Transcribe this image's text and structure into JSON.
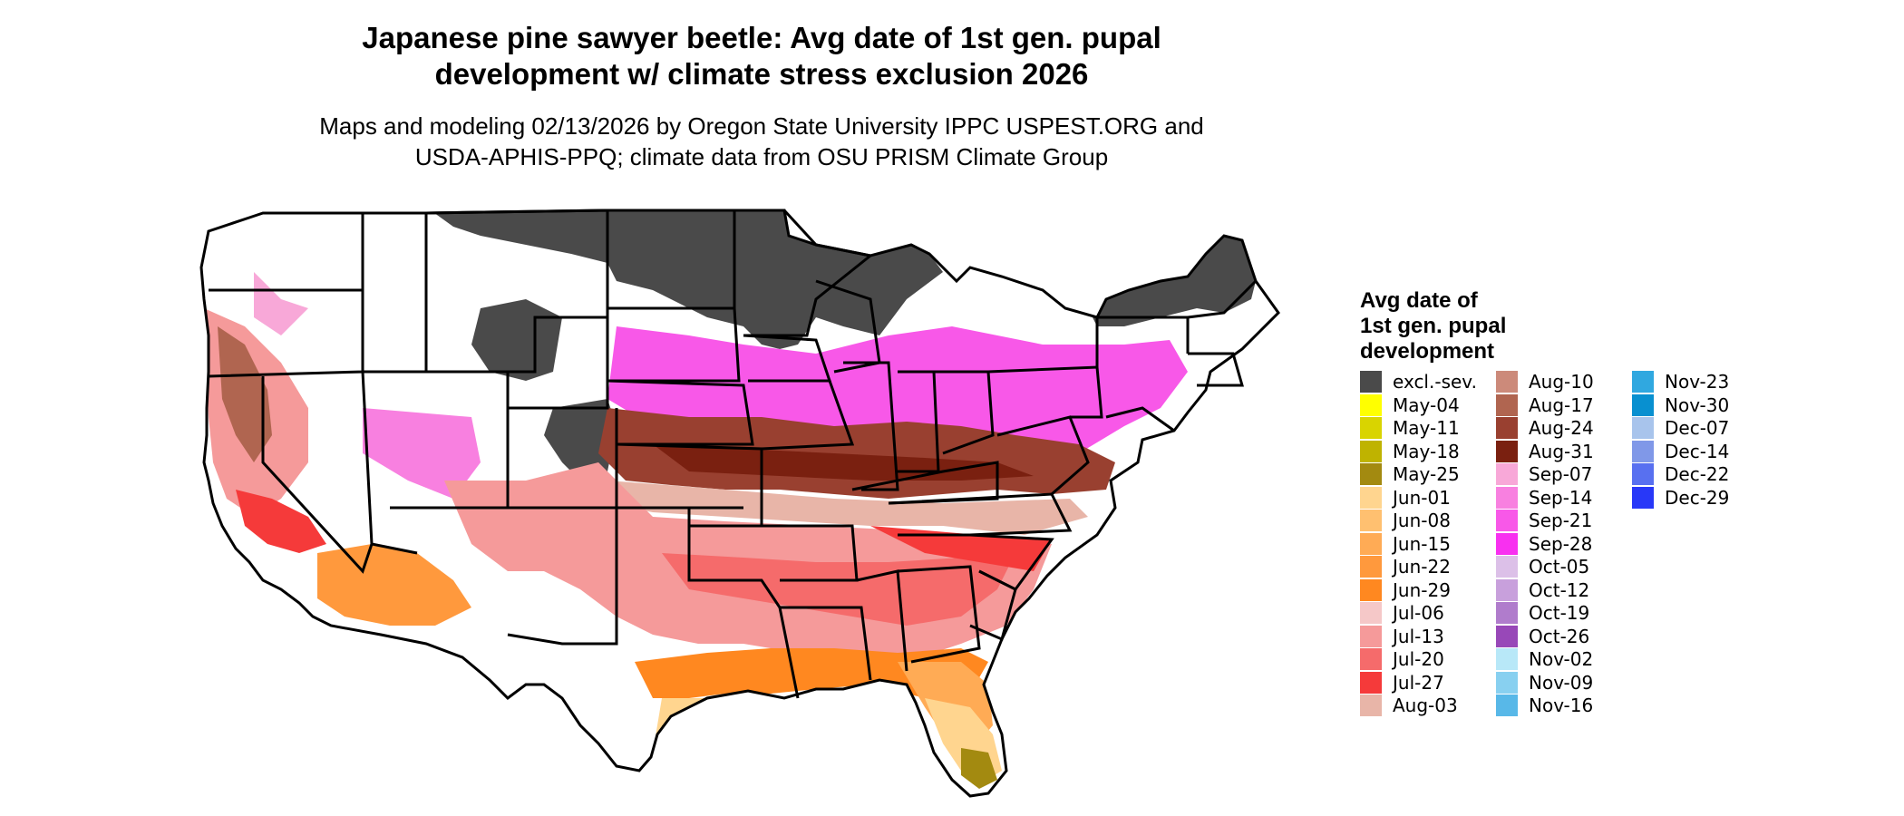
{
  "title_line1": "Japanese pine sawyer beetle: Avg date of 1st gen. pupal",
  "title_line2": "development w/ climate stress exclusion 2026",
  "subtitle_line1": "Maps and modeling 02/13/2026 by Oregon State University IPPC USPEST.ORG and",
  "subtitle_line2": "USDA-APHIS-PPQ; climate data from OSU PRISM Climate Group",
  "legend": {
    "title_line1": "Avg date of",
    "title_line2": "1st gen. pupal",
    "title_line3": "development",
    "items": [
      {
        "label": "excl.-sev.",
        "color": "#4a4a4a"
      },
      {
        "label": "May-04",
        "color": "#ffff00"
      },
      {
        "label": "May-11",
        "color": "#d9d400"
      },
      {
        "label": "May-18",
        "color": "#bfb300"
      },
      {
        "label": "May-25",
        "color": "#a38a10"
      },
      {
        "label": "Jun-01",
        "color": "#ffd58f"
      },
      {
        "label": "Jun-08",
        "color": "#ffc070"
      },
      {
        "label": "Jun-15",
        "color": "#ffab55"
      },
      {
        "label": "Jun-22",
        "color": "#ff993d"
      },
      {
        "label": "Jun-29",
        "color": "#ff8820"
      },
      {
        "label": "Jul-06",
        "color": "#f5c8c8"
      },
      {
        "label": "Jul-13",
        "color": "#f59a9a"
      },
      {
        "label": "Jul-20",
        "color": "#f56b6b"
      },
      {
        "label": "Jul-27",
        "color": "#f53a3a"
      },
      {
        "label": "Aug-03",
        "color": "#e8b5a8"
      },
      {
        "label": "Aug-10",
        "color": "#cc8a7a"
      },
      {
        "label": "Aug-17",
        "color": "#b06550"
      },
      {
        "label": "Aug-24",
        "color": "#994030"
      },
      {
        "label": "Aug-31",
        "color": "#7a2010"
      },
      {
        "label": "Sep-07",
        "color": "#f8a8d8"
      },
      {
        "label": "Sep-14",
        "color": "#f880e0"
      },
      {
        "label": "Sep-21",
        "color": "#f858e8"
      },
      {
        "label": "Sep-28",
        "color": "#f830f0"
      },
      {
        "label": "Oct-05",
        "color": "#dcc0e8"
      },
      {
        "label": "Oct-12",
        "color": "#c8a0dc"
      },
      {
        "label": "Oct-19",
        "color": "#b07ccc"
      },
      {
        "label": "Oct-26",
        "color": "#9848b8"
      },
      {
        "label": "Nov-02",
        "color": "#b8e8f8"
      },
      {
        "label": "Nov-09",
        "color": "#88d0f0"
      },
      {
        "label": "Nov-16",
        "color": "#58b8e8"
      },
      {
        "label": "Nov-23",
        "color": "#30a8e0"
      },
      {
        "label": "Nov-30",
        "color": "#0890d0"
      },
      {
        "label": "Dec-07",
        "color": "#a8c4ec"
      },
      {
        "label": "Dec-14",
        "color": "#8098e8"
      },
      {
        "label": "Dec-22",
        "color": "#5870f0"
      },
      {
        "label": "Dec-29",
        "color": "#2838f8"
      }
    ]
  }
}
